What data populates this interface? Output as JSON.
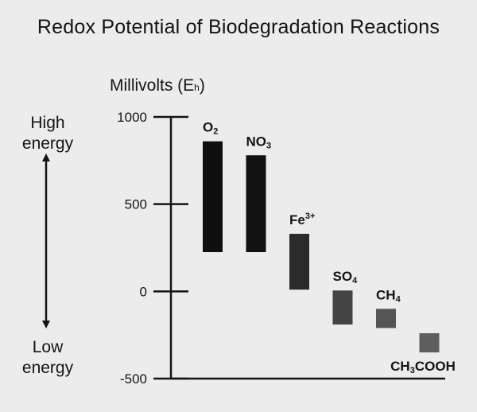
{
  "chart_data": {
    "type": "bar",
    "title": "Redox Potential of Biodegradation Reactions",
    "ylabel": {
      "main": "Millivolts (E",
      "sub": "h",
      "close": ")"
    },
    "ylim": [
      -500,
      1000
    ],
    "yticks": [
      1000,
      500,
      0,
      -500
    ],
    "grid": false,
    "energy_arrow": {
      "top": [
        "High",
        "energy"
      ],
      "bottom": [
        "Low",
        "energy"
      ]
    },
    "series": [
      {
        "categories": [
          {
            "main": "O",
            "sub": "2",
            "sup": ""
          },
          {
            "main": "NO",
            "sub": "3",
            "sup": ""
          },
          {
            "main": "Fe",
            "sub": "",
            "sup": "3+"
          },
          {
            "main": "SO",
            "sub": "4",
            "sup": ""
          },
          {
            "main": "CH",
            "sub": "4",
            "sup": ""
          },
          {
            "main": "CH",
            "sub": "3",
            "sup": "",
            "rest": "COOH"
          }
        ],
        "ranges": [
          [
            225,
            860
          ],
          [
            225,
            780
          ],
          [
            10,
            330
          ],
          [
            -190,
            5
          ],
          [
            -210,
            -100
          ],
          [
            -350,
            -240
          ]
        ],
        "colors": [
          "#0f0f0f",
          "#111111",
          "#2b2b2b",
          "#444444",
          "#555555",
          "#5e5e5e"
        ]
      }
    ]
  }
}
